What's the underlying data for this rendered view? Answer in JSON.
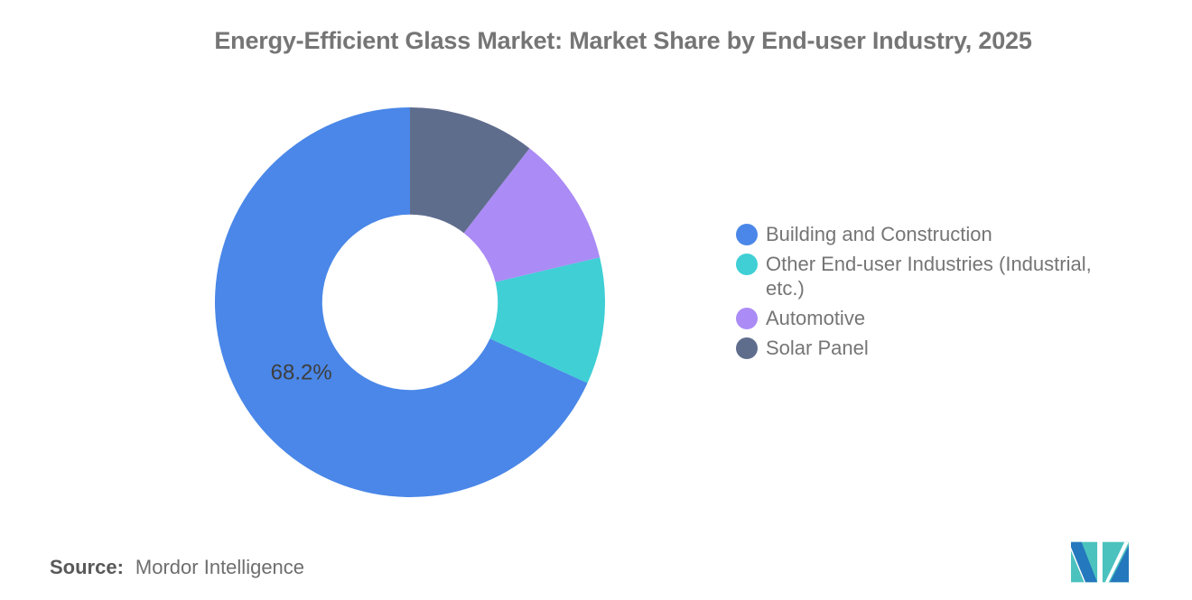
{
  "chart_data": {
    "type": "pie",
    "subtype": "donut",
    "title": "Energy-Efficient Glass Market: Market Share by End-user Industry, 2025",
    "unit": "percent",
    "start_angle": "top",
    "direction": "counterclockwise",
    "inner_radius_ratio": 0.45,
    "legend_position": "right",
    "data_label_color": "#3E3E3E",
    "series": [
      {
        "name": "Building and Construction",
        "value": 68.2,
        "color": "#4A87E8",
        "data_label": "68.2%",
        "legend_lines": [
          "Building and Construction"
        ]
      },
      {
        "name": "Other End-user Industries (Industrial, etc.)",
        "value": 10.5,
        "color": "#3FCFD5",
        "data_label": "",
        "legend_lines": [
          "Other End-user Industries (Industrial,",
          "etc.)"
        ]
      },
      {
        "name": "Automotive",
        "value": 10.8,
        "color": "#AB8BF5",
        "data_label": "",
        "legend_lines": [
          "Automotive"
        ]
      },
      {
        "name": "Solar Panel",
        "value": 10.5,
        "color": "#5F6D8D",
        "data_label": "",
        "legend_lines": [
          "Solar Panel"
        ]
      }
    ]
  },
  "footer": {
    "source_label": "Source:",
    "source_value": "Mordor Intelligence"
  },
  "logo": {
    "name": "mordor-intelligence-logo",
    "teal": "#4BC2BE",
    "blue": "#2478BD",
    "white": "#FFFFFF"
  }
}
